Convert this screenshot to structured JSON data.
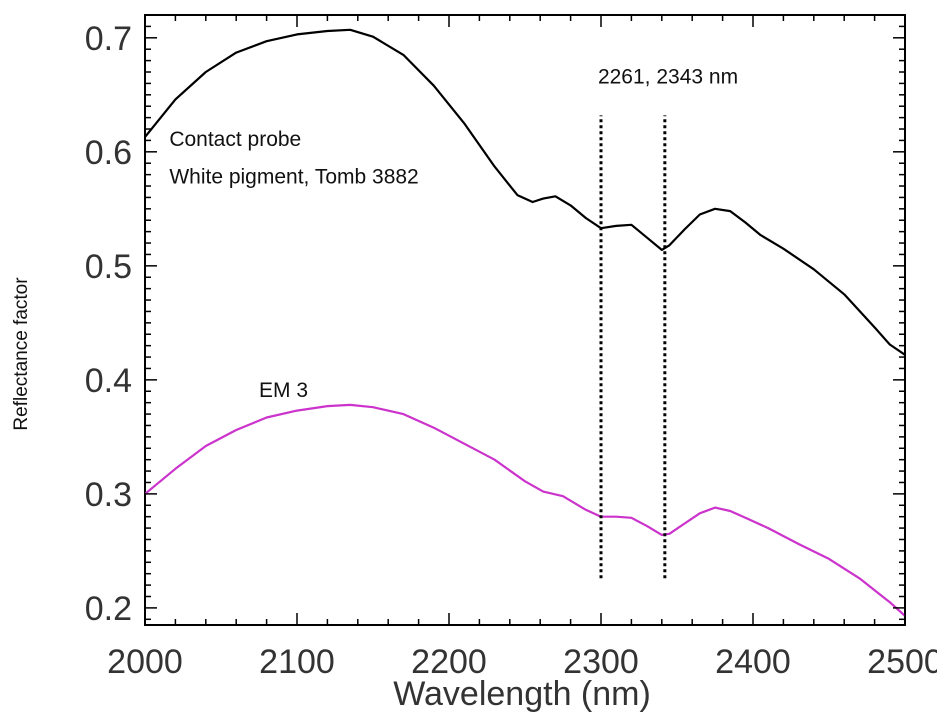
{
  "chart_data": {
    "type": "line",
    "title": "",
    "xlabel": "Wavelength (nm)",
    "ylabel": "Reflectance factor",
    "xlim": [
      2000,
      2500
    ],
    "ylim": [
      0.185,
      0.72
    ],
    "grid": false,
    "x_ticks": [
      2000,
      2100,
      2200,
      2300,
      2400,
      2500
    ],
    "x_tick_labels": [
      "2000",
      "2100",
      "2200",
      "2300",
      "2400",
      "2500"
    ],
    "y_ticks": [
      0.2,
      0.3,
      0.4,
      0.5,
      0.6,
      0.7
    ],
    "y_tick_labels": [
      "0.2",
      "0.3",
      "0.4",
      "0.5",
      "0.6",
      "0.7"
    ],
    "series": [
      {
        "name": "Contact probe",
        "color": "#000000",
        "x": [
          2000,
          2020,
          2040,
          2060,
          2080,
          2100,
          2120,
          2135,
          2150,
          2170,
          2190,
          2210,
          2230,
          2245,
          2255,
          2262,
          2270,
          2280,
          2290,
          2300,
          2310,
          2320,
          2330,
          2340,
          2345,
          2355,
          2365,
          2375,
          2385,
          2395,
          2405,
          2420,
          2440,
          2460,
          2480,
          2490,
          2500
        ],
        "y": [
          0.613,
          0.646,
          0.67,
          0.687,
          0.697,
          0.703,
          0.706,
          0.707,
          0.701,
          0.685,
          0.658,
          0.625,
          0.587,
          0.562,
          0.556,
          0.559,
          0.561,
          0.553,
          0.542,
          0.533,
          0.535,
          0.536,
          0.525,
          0.514,
          0.518,
          0.532,
          0.545,
          0.55,
          0.548,
          0.538,
          0.527,
          0.515,
          0.497,
          0.475,
          0.446,
          0.431,
          0.422
        ]
      },
      {
        "name": "EM 3",
        "color": "#cc33cc",
        "x": [
          2000,
          2020,
          2040,
          2060,
          2080,
          2100,
          2120,
          2135,
          2150,
          2170,
          2190,
          2210,
          2230,
          2250,
          2262,
          2275,
          2290,
          2300,
          2310,
          2320,
          2330,
          2340,
          2345,
          2355,
          2365,
          2375,
          2385,
          2395,
          2410,
          2430,
          2450,
          2470,
          2490,
          2500
        ],
        "y": [
          0.3,
          0.322,
          0.342,
          0.356,
          0.367,
          0.373,
          0.377,
          0.378,
          0.376,
          0.37,
          0.358,
          0.344,
          0.33,
          0.311,
          0.302,
          0.298,
          0.286,
          0.28,
          0.28,
          0.279,
          0.272,
          0.264,
          0.265,
          0.274,
          0.283,
          0.288,
          0.285,
          0.279,
          0.27,
          0.256,
          0.243,
          0.226,
          0.205,
          0.193
        ]
      }
    ],
    "vlines": [
      {
        "x": 2300,
        "y_from": 0.226,
        "y_to": 0.632
      },
      {
        "x": 2342,
        "y_from": 0.226,
        "y_to": 0.632
      }
    ],
    "annotations": [
      {
        "text": "2261, 2343 nm",
        "x": 2298,
        "y": 0.66
      },
      {
        "text": "Contact probe",
        "x": 2016,
        "y": 0.605
      },
      {
        "text": "White pigment, Tomb 3882",
        "x": 2016,
        "y": 0.572
      },
      {
        "text": "EM 3",
        "x": 2075,
        "y": 0.385
      }
    ]
  }
}
